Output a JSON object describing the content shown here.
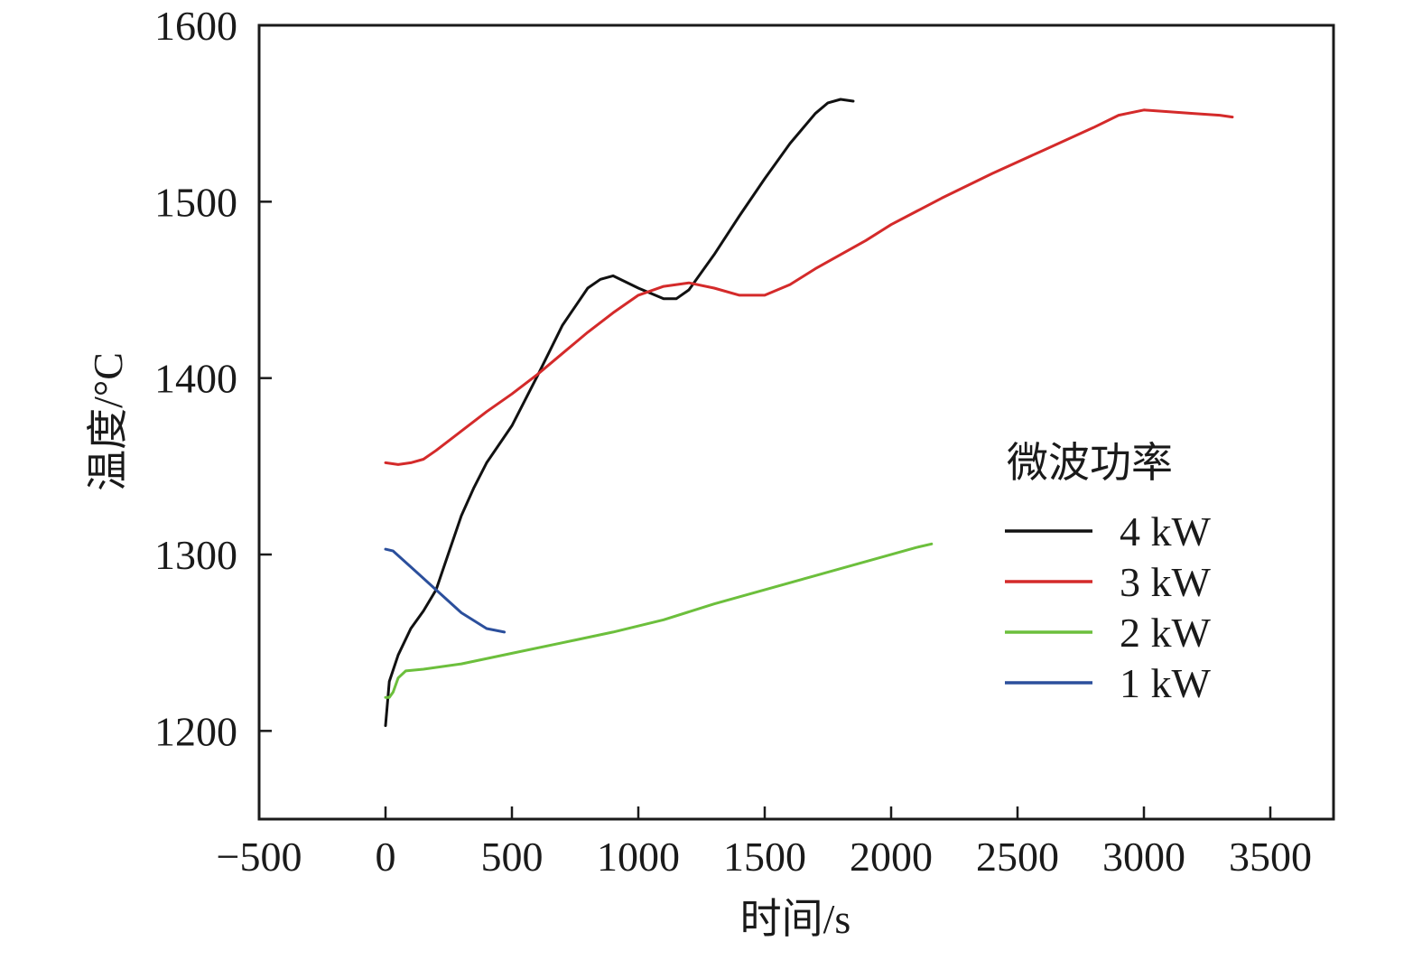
{
  "chart_data": {
    "type": "line",
    "xlabel": "时间/s",
    "ylabel": "温度/°C",
    "xlim": [
      -500,
      3750
    ],
    "ylim": [
      1150,
      1600
    ],
    "xticks": [
      -500,
      0,
      500,
      1000,
      1500,
      2000,
      2500,
      3000,
      3500
    ],
    "xtick_labels": [
      "−500",
      "0",
      "500",
      "1000",
      "1500",
      "2000",
      "2500",
      "3000",
      "3500"
    ],
    "yticks": [
      1200,
      1300,
      1400,
      1500,
      1600
    ],
    "ytick_labels": [
      "1200",
      "1300",
      "1400",
      "1500",
      "1600"
    ],
    "grid": false,
    "legend": {
      "title": "微波功率",
      "placement": "right"
    },
    "series": [
      {
        "name": "4 kW",
        "color": "#111111",
        "x": [
          0,
          15,
          50,
          100,
          150,
          200,
          250,
          300,
          350,
          400,
          500,
          600,
          700,
          800,
          850,
          900,
          1000,
          1100,
          1150,
          1200,
          1300,
          1400,
          1500,
          1600,
          1700,
          1750,
          1800,
          1850
        ],
        "y": [
          1203,
          1228,
          1243,
          1258,
          1268,
          1280,
          1301,
          1322,
          1338,
          1352,
          1373,
          1401,
          1430,
          1451,
          1456,
          1458,
          1451,
          1445,
          1445,
          1450,
          1470,
          1492,
          1513,
          1533,
          1550,
          1556,
          1558,
          1557
        ]
      },
      {
        "name": "3 kW",
        "color": "#d42a2a",
        "x": [
          0,
          50,
          100,
          150,
          200,
          300,
          400,
          500,
          600,
          700,
          800,
          900,
          1000,
          1100,
          1200,
          1300,
          1400,
          1500,
          1600,
          1700,
          1800,
          1900,
          2000,
          2200,
          2400,
          2600,
          2800,
          2900,
          3000,
          3100,
          3200,
          3300,
          3350
        ],
        "y": [
          1352,
          1351,
          1352,
          1354,
          1359,
          1370,
          1381,
          1391,
          1402,
          1414,
          1426,
          1437,
          1447,
          1452,
          1454,
          1451,
          1447,
          1447,
          1453,
          1462,
          1470,
          1478,
          1487,
          1502,
          1516,
          1529,
          1542,
          1549,
          1552,
          1551,
          1550,
          1549,
          1548
        ]
      },
      {
        "name": "2 kW",
        "color": "#6cbf3c",
        "x": [
          0,
          15,
          30,
          50,
          80,
          150,
          300,
          500,
          700,
          900,
          1100,
          1300,
          1500,
          1700,
          1900,
          2100,
          2160
        ],
        "y": [
          1219,
          1219,
          1222,
          1230,
          1234,
          1235,
          1238,
          1244,
          1250,
          1256,
          1263,
          1272,
          1280,
          1288,
          1296,
          1304,
          1306
        ]
      },
      {
        "name": "1 kW",
        "color": "#2b4f9c",
        "x": [
          0,
          30,
          100,
          200,
          300,
          400,
          470
        ],
        "y": [
          1303,
          1302,
          1293,
          1280,
          1267,
          1258,
          1256
        ]
      }
    ]
  }
}
